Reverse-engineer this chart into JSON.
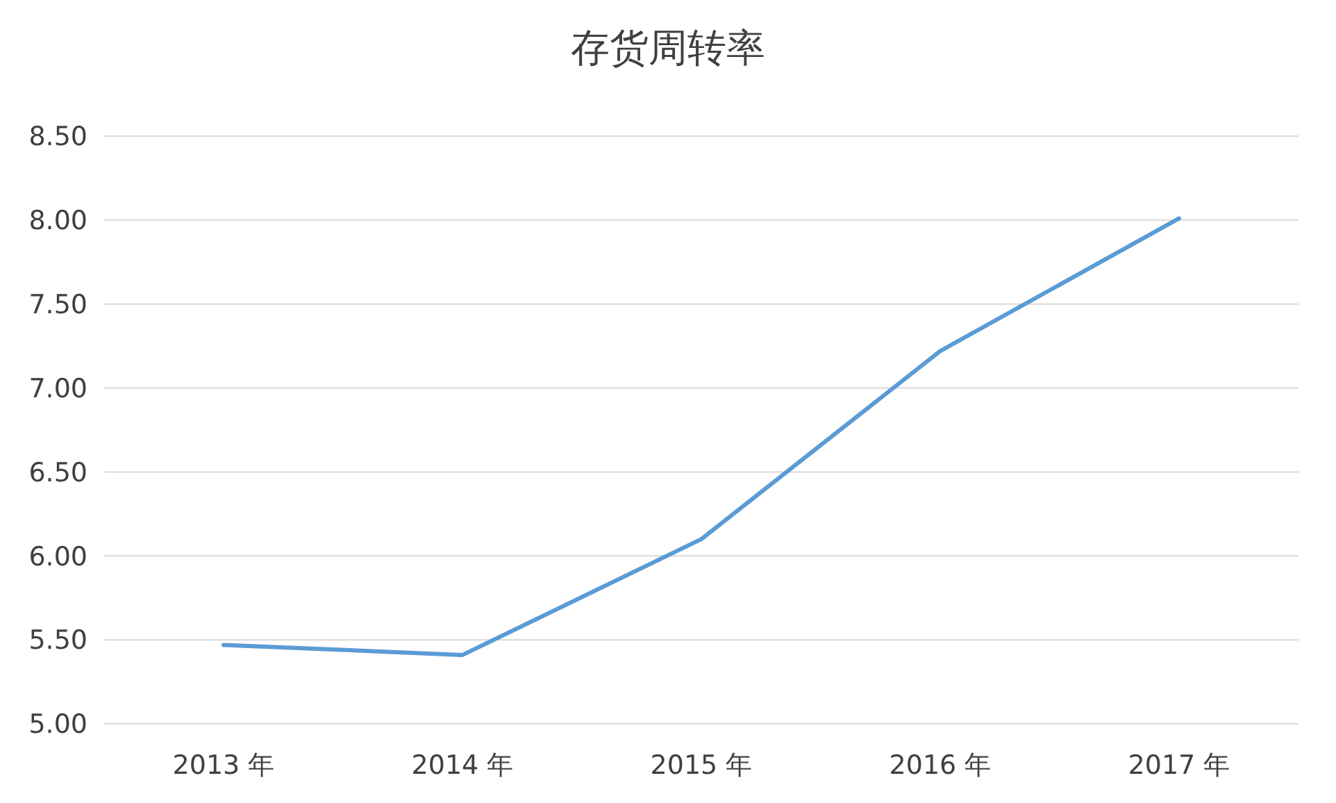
{
  "chart_data": {
    "type": "line",
    "title": "存货周转率",
    "categories": [
      "2013 年",
      "2014 年",
      "2015 年",
      "2016 年",
      "2017 年"
    ],
    "series": [
      {
        "color": "#5b9bd5",
        "values": [
          5.47,
          5.41,
          6.1,
          7.22,
          8.01
        ]
      }
    ],
    "ylim": [
      5,
      8.5
    ],
    "yticks": [
      {
        "value": 5,
        "label": "5.00"
      },
      {
        "value": 5.5,
        "label": "5.50"
      },
      {
        "value": 6,
        "label": "6.00"
      },
      {
        "value": 6.5,
        "label": "6.50"
      },
      {
        "value": 7,
        "label": "7.00"
      },
      {
        "value": 7.5,
        "label": "7.50"
      },
      {
        "value": 8,
        "label": "8.00"
      },
      {
        "value": 8.5,
        "label": "8.50"
      }
    ],
    "grid": true
  }
}
